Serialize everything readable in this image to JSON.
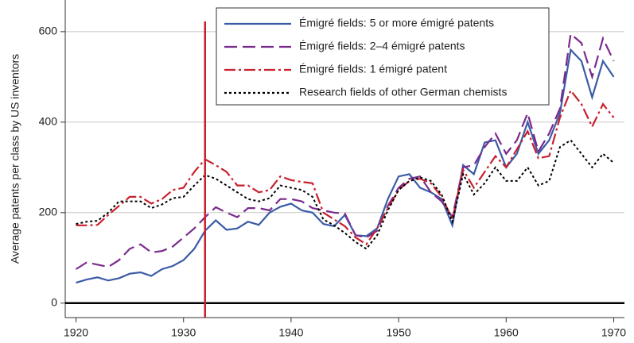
{
  "chart_data": {
    "type": "line",
    "ylabel": "Average patents per class by US inventors",
    "x": [
      1920,
      1921,
      1922,
      1923,
      1924,
      1925,
      1926,
      1927,
      1928,
      1929,
      1930,
      1931,
      1932,
      1933,
      1934,
      1935,
      1936,
      1937,
      1938,
      1939,
      1940,
      1941,
      1942,
      1943,
      1944,
      1945,
      1946,
      1947,
      1948,
      1949,
      1950,
      1951,
      1952,
      1953,
      1954,
      1955,
      1956,
      1957,
      1958,
      1959,
      1960,
      1961,
      1962,
      1963,
      1964,
      1965,
      1966,
      1967,
      1968,
      1969,
      1970
    ],
    "series": [
      {
        "name": "Émigré fields: 5 or more émigré patents",
        "color": "#3b5ba6",
        "line_style": "solid",
        "values": [
          45,
          52,
          57,
          50,
          55,
          65,
          68,
          60,
          75,
          82,
          95,
          120,
          160,
          183,
          162,
          165,
          180,
          173,
          200,
          213,
          220,
          205,
          200,
          175,
          170,
          195,
          150,
          148,
          165,
          230,
          280,
          285,
          255,
          245,
          230,
          172,
          305,
          285,
          355,
          360,
          300,
          330,
          400,
          330,
          360,
          420,
          560,
          535,
          455,
          535,
          500
        ]
      },
      {
        "name": "Émigré fields: 2–4 émigré patents",
        "color": "#7a2a8c",
        "line_style": "dashed",
        "values": [
          75,
          90,
          85,
          80,
          95,
          120,
          130,
          112,
          115,
          125,
          145,
          165,
          190,
          212,
          200,
          190,
          210,
          210,
          205,
          230,
          230,
          225,
          210,
          205,
          200,
          198,
          150,
          145,
          160,
          215,
          255,
          275,
          280,
          245,
          225,
          190,
          300,
          305,
          345,
          375,
          330,
          360,
          420,
          335,
          375,
          430,
          595,
          575,
          500,
          585,
          535
        ]
      },
      {
        "name": "Émigré fields: 1 émigré patent",
        "color": "#c8202e",
        "line_style": "dashdot",
        "values": [
          172,
          172,
          173,
          195,
          215,
          235,
          235,
          220,
          230,
          250,
          255,
          290,
          318,
          305,
          290,
          260,
          260,
          245,
          250,
          280,
          272,
          268,
          265,
          200,
          185,
          170,
          145,
          130,
          165,
          210,
          250,
          270,
          275,
          265,
          235,
          185,
          295,
          255,
          290,
          325,
          300,
          340,
          380,
          320,
          325,
          410,
          470,
          440,
          390,
          440,
          410
        ]
      },
      {
        "name": "Research fields of other German chemists",
        "color": "#000000",
        "line_style": "dotted",
        "values": [
          175,
          180,
          182,
          200,
          225,
          225,
          225,
          210,
          218,
          232,
          235,
          260,
          283,
          275,
          260,
          245,
          230,
          225,
          232,
          260,
          255,
          250,
          235,
          185,
          172,
          155,
          135,
          120,
          150,
          205,
          250,
          270,
          278,
          270,
          240,
          180,
          285,
          240,
          265,
          300,
          270,
          270,
          300,
          260,
          270,
          345,
          360,
          330,
          300,
          330,
          310
        ]
      }
    ],
    "xlim": [
      1919,
      1971
    ],
    "ylim": [
      -32,
      670
    ],
    "xticks": [
      1920,
      1930,
      1940,
      1950,
      1960,
      1970
    ],
    "yticks": [
      0,
      200,
      400,
      600
    ],
    "grid": true,
    "baseline": 0,
    "vline": {
      "x": 1932,
      "color": "#c8202e"
    },
    "legend": "top-center"
  }
}
